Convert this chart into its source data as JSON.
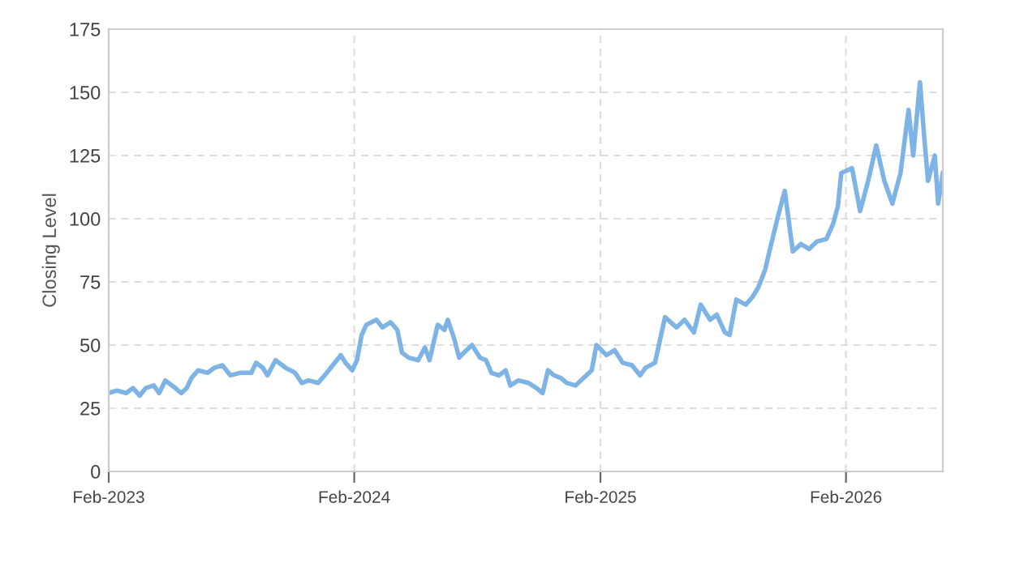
{
  "chart_data": {
    "type": "line",
    "ylabel": "Closing Level",
    "color": "#7eb3e6",
    "grid": true,
    "legend": false,
    "marker": "none",
    "line_style": "solid",
    "xlim": [
      "2023-02-01",
      "2026-06-25"
    ],
    "ylim": [
      0,
      175
    ],
    "yticks": [
      0,
      25,
      50,
      75,
      100,
      125,
      150,
      175
    ],
    "xticks": [
      {
        "value": "2023-02-01",
        "label": "Feb-2023"
      },
      {
        "value": "2024-02-01",
        "label": "Feb-2024"
      },
      {
        "value": "2025-02-01",
        "label": "Feb-2025"
      },
      {
        "value": "2026-02-01",
        "label": "Feb-2026"
      }
    ],
    "x": [
      "2023-02-01",
      "2023-02-13",
      "2023-02-27",
      "2023-03-09",
      "2023-03-19",
      "2023-03-28",
      "2023-04-09",
      "2023-04-17",
      "2023-04-26",
      "2023-05-11",
      "2023-05-20",
      "2023-05-28",
      "2023-06-04",
      "2023-06-14",
      "2023-06-28",
      "2023-07-08",
      "2023-07-20",
      "2023-08-01",
      "2023-08-15",
      "2023-09-01",
      "2023-09-08",
      "2023-09-18",
      "2023-09-25",
      "2023-10-07",
      "2023-10-22",
      "2023-11-05",
      "2023-11-15",
      "2023-11-25",
      "2023-12-09",
      "2023-12-19",
      "2023-12-31",
      "2024-01-12",
      "2024-01-19",
      "2024-01-29",
      "2024-02-05",
      "2024-02-12",
      "2024-02-19",
      "2024-03-05",
      "2024-03-14",
      "2024-03-26",
      "2024-04-05",
      "2024-04-12",
      "2024-04-22",
      "2024-05-06",
      "2024-05-16",
      "2024-05-23",
      "2024-06-04",
      "2024-06-14",
      "2024-06-19",
      "2024-06-28",
      "2024-07-06",
      "2024-07-13",
      "2024-07-25",
      "2024-08-06",
      "2024-08-15",
      "2024-08-23",
      "2024-09-03",
      "2024-09-13",
      "2024-09-20",
      "2024-10-02",
      "2024-10-17",
      "2024-10-29",
      "2024-11-07",
      "2024-11-15",
      "2024-11-24",
      "2024-12-04",
      "2024-12-13",
      "2024-12-26",
      "2025-01-07",
      "2025-01-19",
      "2025-01-26",
      "2025-02-10",
      "2025-02-22",
      "2025-03-06",
      "2025-03-20",
      "2025-04-01",
      "2025-04-09",
      "2025-04-23",
      "2025-05-08",
      "2025-05-25",
      "2025-06-06",
      "2025-06-20",
      "2025-06-30",
      "2025-07-14",
      "2025-07-24",
      "2025-08-05",
      "2025-08-12",
      "2025-08-22",
      "2025-09-05",
      "2025-09-15",
      "2025-09-24",
      "2025-10-04",
      "2025-10-11",
      "2025-10-23",
      "2025-11-02",
      "2025-11-14",
      "2025-11-26",
      "2025-12-08",
      "2025-12-20",
      "2026-01-03",
      "2026-01-13",
      "2026-01-20",
      "2026-01-25",
      "2026-02-10",
      "2026-02-22",
      "2026-03-06",
      "2026-03-18",
      "2026-03-30",
      "2026-04-11",
      "2026-04-23",
      "2026-05-05",
      "2026-05-12",
      "2026-05-22",
      "2026-05-29",
      "2026-06-03",
      "2026-06-13",
      "2026-06-18",
      "2026-06-25"
    ],
    "values": [
      31,
      32,
      31,
      33,
      30,
      33,
      34,
      31,
      36,
      33,
      31,
      33,
      37,
      40,
      39,
      41,
      42,
      38,
      39,
      39,
      43,
      41,
      38,
      44,
      41,
      39,
      35,
      36,
      35,
      38,
      42,
      46,
      43,
      40,
      44,
      54,
      58,
      60,
      57,
      59,
      56,
      47,
      45,
      44,
      49,
      44,
      58,
      56,
      60,
      53,
      45,
      47,
      50,
      45,
      44,
      39,
      38,
      40,
      34,
      36,
      35,
      33,
      31,
      40,
      38,
      37,
      35,
      34,
      37,
      40,
      50,
      46,
      48,
      43,
      42,
      38,
      41,
      43,
      61,
      57,
      60,
      55,
      66,
      60,
      62,
      55,
      54,
      68,
      66,
      69,
      73,
      80,
      88,
      101,
      111,
      87,
      90,
      88,
      91,
      92,
      98,
      105,
      118,
      120,
      103,
      115,
      129,
      115,
      106,
      118,
      143,
      125,
      154,
      130,
      115,
      125,
      106,
      118
    ]
  }
}
